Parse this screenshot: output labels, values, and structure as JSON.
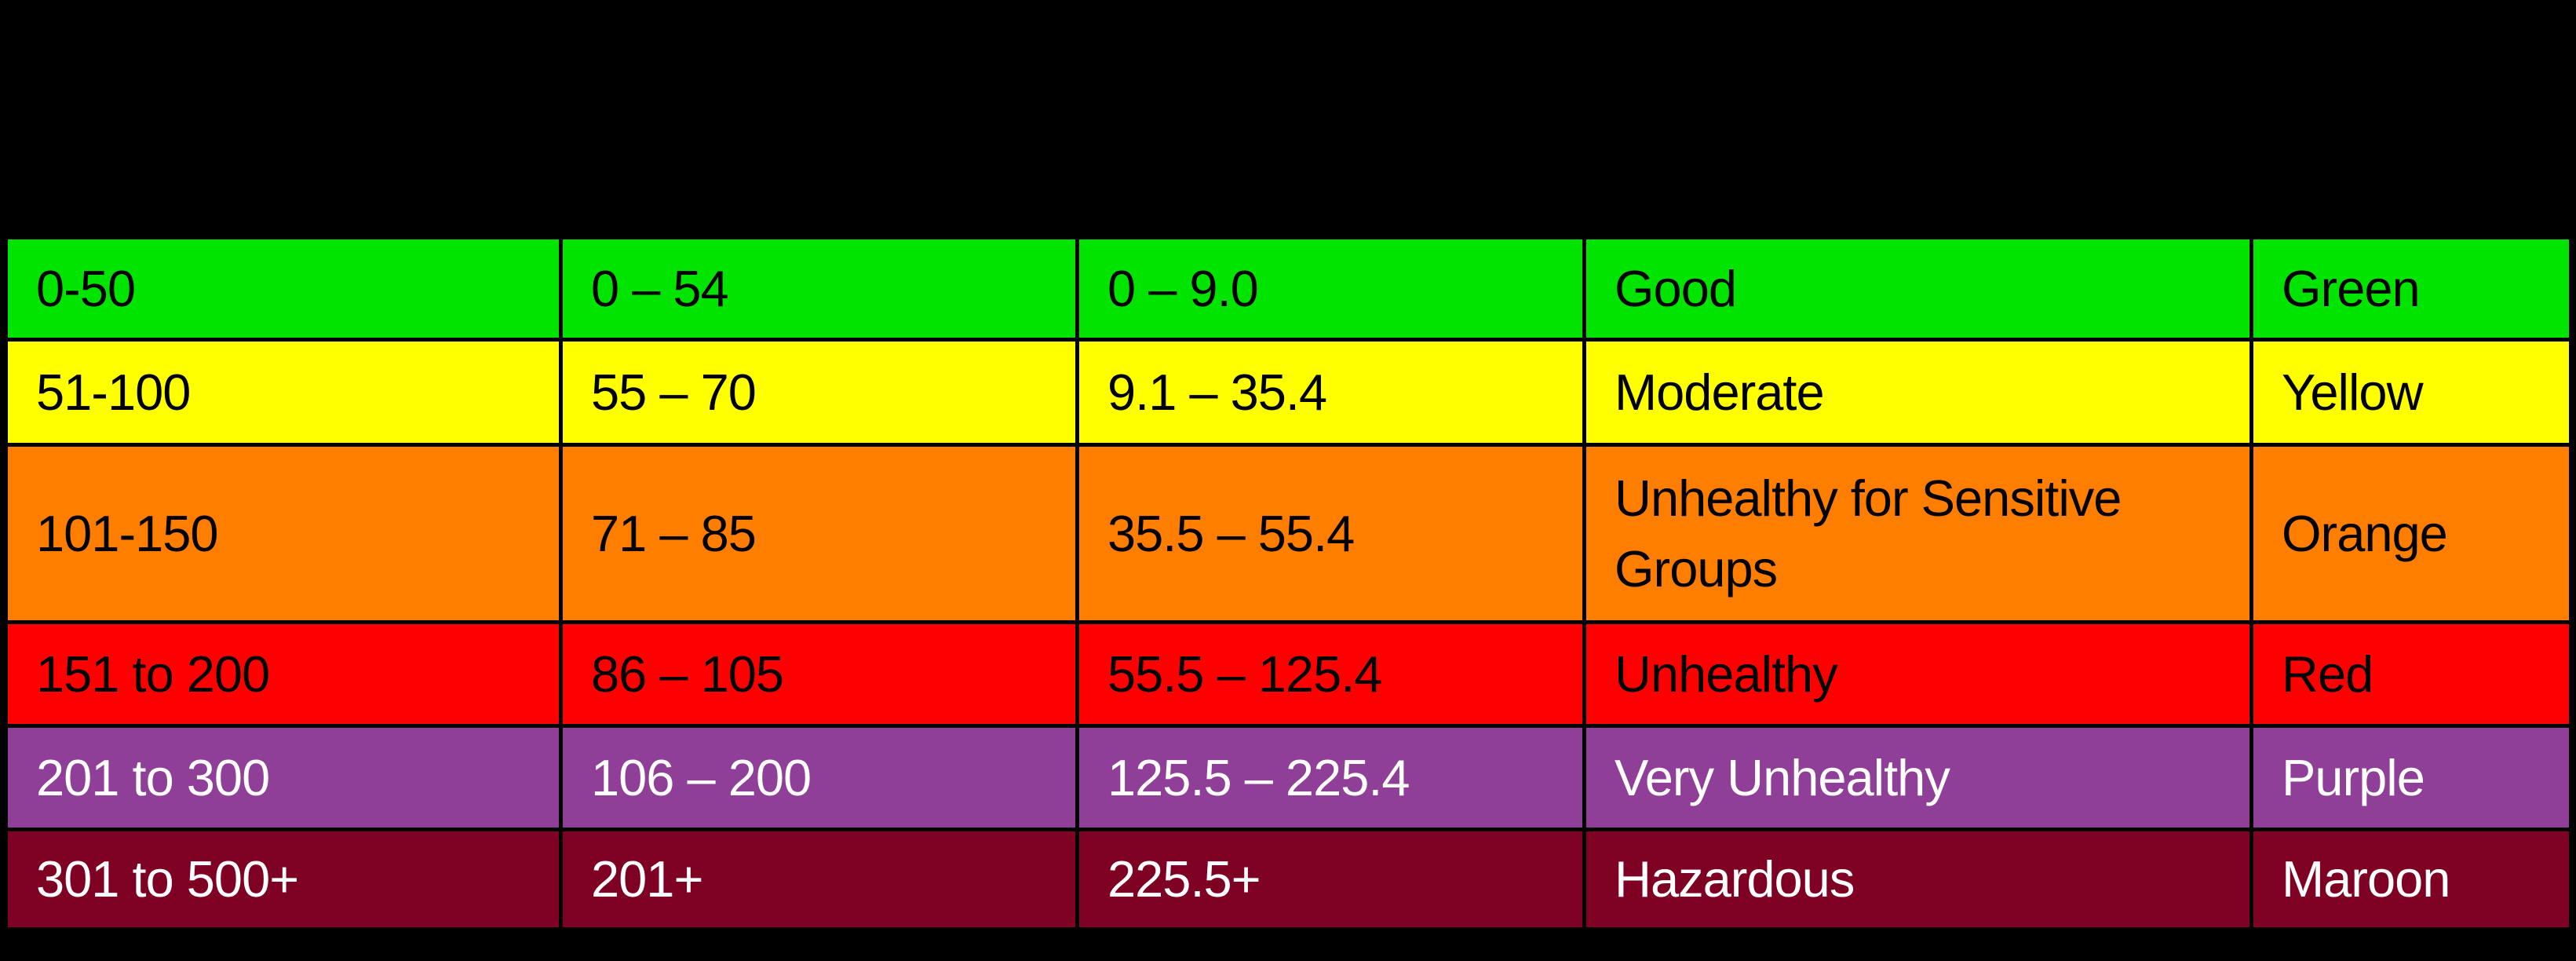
{
  "page": {
    "background_hex": "#000000"
  },
  "chart_data": {
    "type": "table",
    "title": "",
    "header_visible": false,
    "grid": "black cell borders on black background",
    "rows": [
      {
        "cells": [
          "0-50",
          "0 – 54",
          "0 – 9.0",
          "Good",
          "Green"
        ],
        "row_bg_hex": "#00E400",
        "row_text_hex": "#000000"
      },
      {
        "cells": [
          "51-100",
          "55 – 70",
          "9.1 – 35.4",
          "Moderate",
          "Yellow"
        ],
        "row_bg_hex": "#FFFF00",
        "row_text_hex": "#000000"
      },
      {
        "cells": [
          "101-150",
          "71 – 85",
          "35.5 – 55.4",
          "Unhealthy for Sensitive Groups",
          "Orange"
        ],
        "row_bg_hex": "#FF7E00",
        "row_text_hex": "#000000"
      },
      {
        "cells": [
          "151 to 200",
          "86 – 105",
          "55.5 – 125.4",
          "Unhealthy",
          "Red"
        ],
        "row_bg_hex": "#FF0000",
        "row_text_hex": "#000000"
      },
      {
        "cells": [
          "201 to 300",
          "106 – 200",
          "125.5 – 225.4",
          "Very Unhealthy",
          "Purple"
        ],
        "row_bg_hex": "#8F3F97",
        "row_text_hex": "#FFFFFF"
      },
      {
        "cells": [
          "301 to 500+",
          "201+",
          "225.5+",
          "Hazardous",
          "Maroon"
        ],
        "row_bg_hex": "#7E0023",
        "row_text_hex": "#FFFFFF"
      }
    ]
  }
}
